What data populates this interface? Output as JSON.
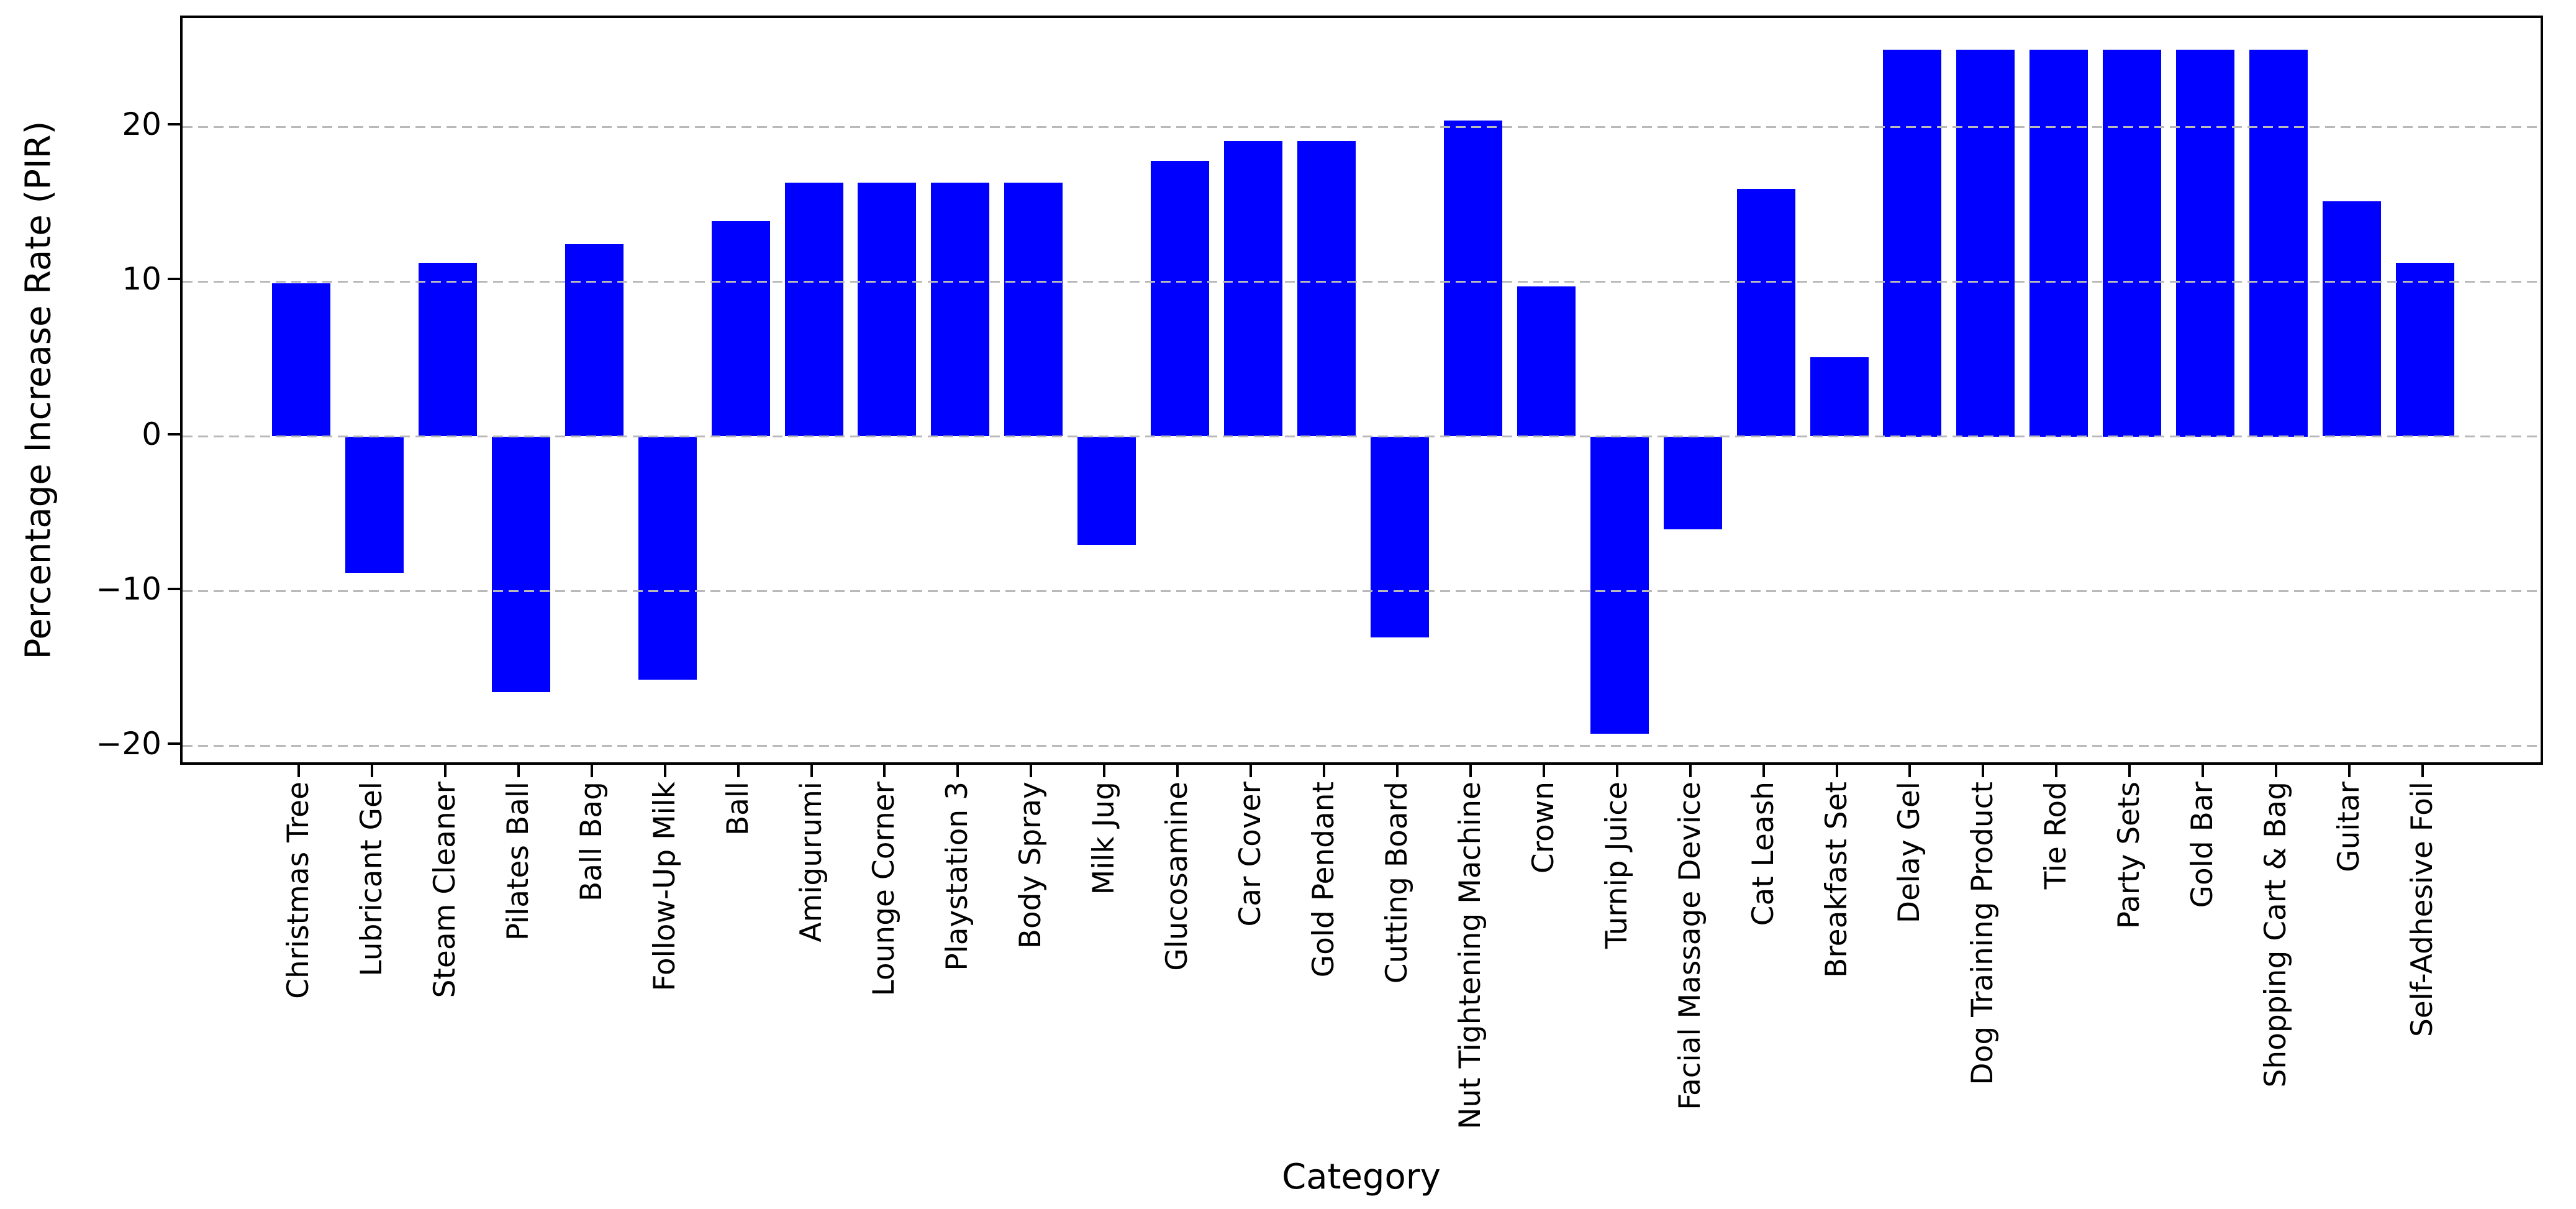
{
  "chart_data": {
    "type": "bar",
    "title": "",
    "xlabel": "Category",
    "ylabel": "Percentage Increase Rate (PIR)",
    "categories": [
      "Christmas Tree",
      "Lubricant Gel",
      "Steam Cleaner",
      "Pilates Ball",
      "Ball Bag",
      "Follow-Up Milk",
      "Ball",
      "Amigurumi",
      "Lounge Corner",
      "Playstation 3",
      "Body Spray",
      "Milk Jug",
      "Glucosamine",
      "Car Cover",
      "Gold Pendant",
      "Cutting Board",
      "Nut Tightening Machine",
      "Crown",
      "Turnip Juice",
      "Facial Massage Device",
      "Cat Leash",
      "Breakfast Set",
      "Delay Gel",
      "Dog Training Product",
      "Tie Rod",
      "Party Sets",
      "Gold Bar",
      "Shopping Cart & Bag",
      "Guitar",
      "Self-Adhesive Foil"
    ],
    "values": [
      9.9,
      -8.8,
      11.2,
      -16.5,
      12.4,
      -15.7,
      13.9,
      16.4,
      16.4,
      16.4,
      16.4,
      -7.0,
      17.8,
      19.1,
      19.1,
      -13.0,
      20.4,
      9.7,
      -19.2,
      -6.0,
      16.0,
      5.1,
      25.0,
      25.0,
      25.0,
      25.0,
      25.0,
      25.0,
      15.2,
      11.2
    ],
    "yticks": [
      -20,
      -10,
      0,
      10,
      20
    ],
    "ylim": [
      -21.4,
      27.0
    ],
    "bar_color": "#0000fe",
    "grid": "horizontal-dashed",
    "grid_color": "#b9b9b9",
    "axis_color": "#000000",
    "background_color": "#ffffff",
    "legend": null
  }
}
